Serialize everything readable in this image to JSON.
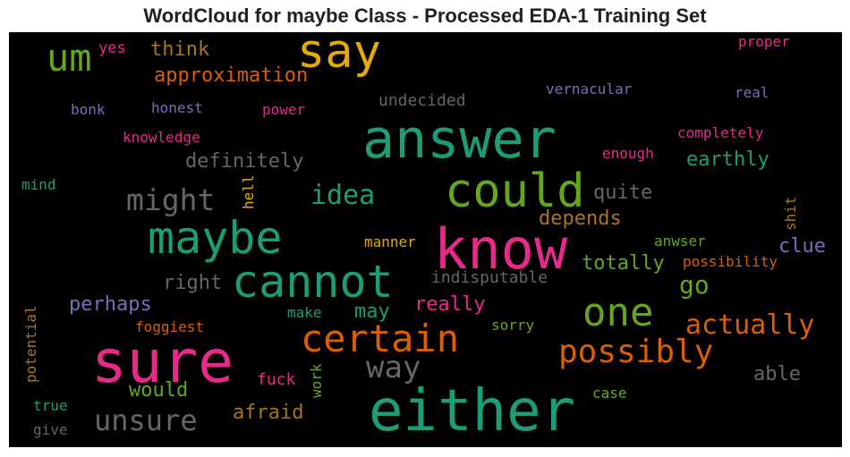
{
  "title": "WordCloud for maybe Class - Processed EDA-1 Training Set",
  "colors": {
    "teal": "#1b9e77",
    "orange": "#d95f02",
    "purple": "#7570b3",
    "pink": "#e7298a",
    "green": "#66a61e",
    "gold": "#e6ab02",
    "brown": "#a6761d",
    "gray": "#666666"
  },
  "words": {
    "say": "say",
    "um": "um",
    "think": "think",
    "yes": "yes",
    "approximation": "approximation",
    "proper": "proper",
    "vernacular": "vernacular",
    "real": "real",
    "undecided": "undecided",
    "bonk": "bonk",
    "honest": "honest",
    "power": "power",
    "answer": "answer",
    "knowledge": "knowledge",
    "completely": "completely",
    "enough": "enough",
    "definitely": "definitely",
    "earthly": "earthly",
    "could": "could",
    "mind": "mind",
    "might": "might",
    "idea": "idea",
    "quite": "quite",
    "hell": "hell",
    "shit": "shit",
    "depends": "depends",
    "maybe": "maybe",
    "know": "know",
    "clue": "clue",
    "manner": "manner",
    "anwser": "anwser",
    "totally": "totally",
    "possibility": "possibility",
    "cannot": "cannot",
    "right": "right",
    "indisputable": "indisputable",
    "go": "go",
    "potential": "potential",
    "perhaps": "perhaps",
    "really": "really",
    "one": "one",
    "make": "make",
    "may": "may",
    "foggiest": "foggiest",
    "sorry": "sorry",
    "actually": "actually",
    "certain": "certain",
    "sure": "sure",
    "possibly": "possibly",
    "way": "way",
    "able": "able",
    "would": "would",
    "fuck": "fuck",
    "work": "work",
    "case": "case",
    "true": "true",
    "either": "either",
    "unsure": "unsure",
    "afraid": "afraid",
    "give": "give"
  }
}
